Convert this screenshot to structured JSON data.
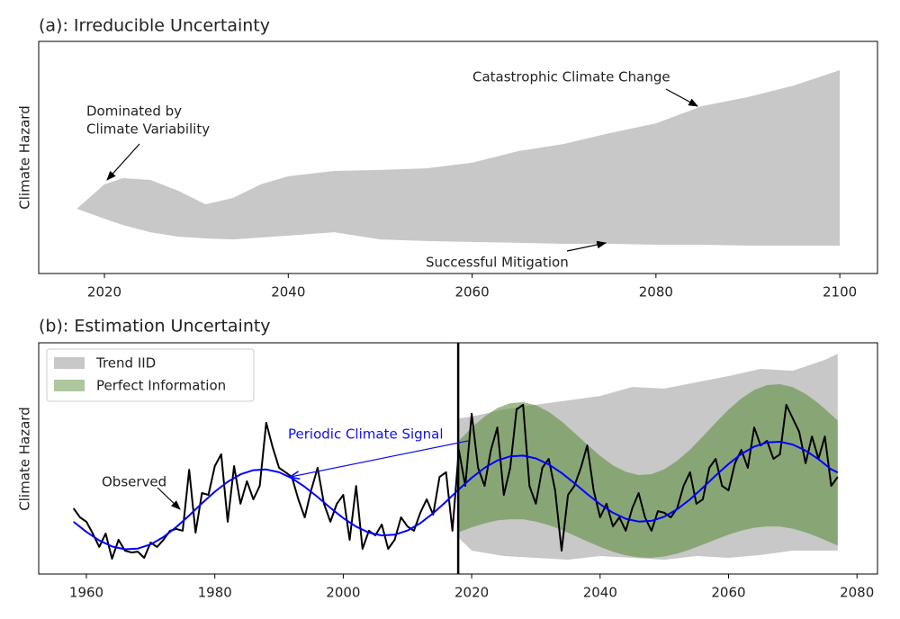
{
  "chart_data": [
    {
      "type": "band",
      "title": "(a): Irreducible Uncertainty",
      "ylabel": "Climate Hazard",
      "x": [
        2017,
        2020,
        2022,
        2025,
        2028,
        2031,
        2034,
        2037,
        2040,
        2045,
        2050,
        2055,
        2060,
        2065,
        2070,
        2075,
        2080,
        2085,
        2090,
        2095,
        2100
      ],
      "upper": [
        27.9,
        38.4,
        41.1,
        40.3,
        35.7,
        29.8,
        32.6,
        38.4,
        41.9,
        44.2,
        44.6,
        45.3,
        47.7,
        52.7,
        55.8,
        60.5,
        64.7,
        72.1,
        76.0,
        81.0,
        87.6
      ],
      "lower": [
        27.9,
        23.6,
        20.9,
        17.8,
        15.9,
        15.1,
        14.7,
        15.5,
        16.3,
        17.8,
        14.7,
        14.0,
        13.6,
        13.2,
        12.8,
        12.8,
        12.4,
        12.4,
        12.0,
        12.0,
        12.0
      ],
      "color": "#c8c8c8",
      "xlim": [
        2012.85,
        2104.1
      ],
      "xticks": [
        2020,
        2040,
        2060,
        2080,
        2100
      ],
      "ylim": [
        0,
        100
      ],
      "annotations": [
        {
          "text": "Catastrophic Climate Change"
        },
        {
          "text": [
            "Dominated by",
            "Climate Variability"
          ]
        },
        {
          "text": "Successful Mitigation"
        }
      ]
    },
    {
      "type": "line",
      "title": "(b): Estimation Uncertainty",
      "ylabel": "Climate Hazard",
      "xlim": [
        1952.57,
        2083.2
      ],
      "xticks": [
        1960,
        1980,
        2000,
        2020,
        2040,
        2060,
        2080
      ],
      "ylim": [
        0,
        100
      ],
      "legend": "upper left",
      "vline": 2017.9,
      "bands": [
        {
          "name": "Trend IID",
          "color": "#c8c8c8",
          "x": [
            2018,
            2020,
            2025,
            2030,
            2035,
            2040,
            2045,
            2050,
            2055,
            2060,
            2065,
            2070,
            2075,
            2077
          ],
          "upper": [
            67.3,
            68.1,
            71.2,
            73.2,
            75.1,
            77.0,
            80.9,
            80.2,
            82.9,
            85.6,
            88.7,
            87.9,
            92.6,
            95.3
          ],
          "lower": [
            15.6,
            10.1,
            7.8,
            7.0,
            6.2,
            7.8,
            7.0,
            6.2,
            7.8,
            7.0,
            8.2,
            10.1,
            10.1,
            10.1
          ]
        },
        {
          "name": "Perfect Information",
          "color": "#5e8f3e",
          "x": [
            2018,
            2020,
            2022,
            2024,
            2026,
            2028,
            2030,
            2032,
            2034,
            2036,
            2038,
            2040,
            2042,
            2044,
            2046,
            2048,
            2050,
            2052,
            2054,
            2056,
            2058,
            2060,
            2062,
            2064,
            2066,
            2068,
            2070,
            2072,
            2074,
            2076,
            2077
          ],
          "upper": [
            57.6,
            63.3,
            68.1,
            71.8,
            73.9,
            74.3,
            73.0,
            70.1,
            66.0,
            61.1,
            56.0,
            51.1,
            47.0,
            44.2,
            42.8,
            43.2,
            45.3,
            49.0,
            53.8,
            59.5,
            65.4,
            71.1,
            75.9,
            79.6,
            81.7,
            82.1,
            80.8,
            77.9,
            73.8,
            68.9,
            66.4
          ],
          "lower": [
            18.1,
            20.2,
            21.9,
            23.2,
            23.7,
            23.6,
            22.7,
            21.1,
            19.1,
            16.6,
            14.1,
            11.7,
            9.6,
            8.1,
            7.2,
            7.0,
            7.6,
            8.8,
            10.6,
            12.7,
            14.9,
            17.0,
            18.8,
            20.0,
            20.6,
            20.5,
            19.6,
            18.0,
            15.9,
            13.5,
            12.3
          ]
        }
      ],
      "series": [
        {
          "color": "#000000",
          "x": [
            1958,
            1959,
            1960,
            1961,
            1962,
            1963,
            1964,
            1965,
            1966,
            1967,
            1968,
            1969,
            1970,
            1971,
            1972,
            1973,
            1974,
            1975,
            1976,
            1977,
            1978,
            1979,
            1980,
            1981,
            1982,
            1983,
            1984,
            1985,
            1986,
            1987,
            1988,
            1989,
            1990,
            1991,
            1992,
            1993,
            1994,
            1995,
            1996,
            1997,
            1998,
            1999,
            2000,
            2001,
            2002,
            2003,
            2004,
            2005,
            2006,
            2007,
            2008,
            2009,
            2010,
            2011,
            2012,
            2013,
            2014,
            2015,
            2016,
            2017,
            2018,
            2019,
            2020,
            2021,
            2022,
            2023,
            2024,
            2025,
            2026,
            2027,
            2028,
            2029,
            2030,
            2031,
            2032,
            2033,
            2034,
            2035,
            2036,
            2037,
            2038,
            2039,
            2040,
            2041,
            2042,
            2043,
            2044,
            2045,
            2046,
            2047,
            2048,
            2049,
            2050,
            2051,
            2052,
            2053,
            2054,
            2055,
            2056,
            2057,
            2058,
            2059,
            2060,
            2061,
            2062,
            2063,
            2064,
            2065,
            2066,
            2067,
            2068,
            2069,
            2070,
            2071,
            2072,
            2073,
            2074,
            2075,
            2076,
            2077
          ],
          "values": [
            28.4,
            24.5,
            22.6,
            17.5,
            11.7,
            17.5,
            6.6,
            14.8,
            10.1,
            9.3,
            9.7,
            7.0,
            13.6,
            11.7,
            14.8,
            18.7,
            19.5,
            18.7,
            45.1,
            17.9,
            35.0,
            34.2,
            46.7,
            51.8,
            22.6,
            46.7,
            30.4,
            40.1,
            32.3,
            38.1,
            65.4,
            54.9,
            45.9,
            44.0,
            42.0,
            32.3,
            24.5,
            36.2,
            45.9,
            30.4,
            22.6,
            30.4,
            34.2,
            14.8,
            38.1,
            10.9,
            18.7,
            16.7,
            21.4,
            10.9,
            14.8,
            24.5,
            20.6,
            18.7,
            26.5,
            32.3,
            25.7,
            42.0,
            44.0,
            18.7,
            53.7,
            38.1,
            69.3,
            45.9,
            38.1,
            53.7,
            63.4,
            34.2,
            45.9,
            71.2,
            73.2,
            38.1,
            30.4,
            45.9,
            49.8,
            36.2,
            10.1,
            34.2,
            38.1,
            45.9,
            55.6,
            36.2,
            24.5,
            30.4,
            20.6,
            24.5,
            18.7,
            28.4,
            35.0,
            24.5,
            18.7,
            27.2,
            26.5,
            24.5,
            28.4,
            38.1,
            44.0,
            30.4,
            32.3,
            45.9,
            49.8,
            38.1,
            36.2,
            47.9,
            53.7,
            45.9,
            63.4,
            55.6,
            57.6,
            49.8,
            51.8,
            73.2,
            67.3,
            61.5,
            47.9,
            59.5,
            49.8,
            59.5,
            38.1,
            42.0
          ]
        },
        {
          "color": "#0000ff",
          "x": [
            1958,
            1960,
            1962,
            1964,
            1966,
            1968,
            1970,
            1972,
            1974,
            1976,
            1978,
            1980,
            1982,
            1984,
            1986,
            1988,
            1990,
            1992,
            1994,
            1996,
            1998,
            2000,
            2002,
            2004,
            2006,
            2008,
            2010,
            2012,
            2014,
            2016,
            2018,
            2020,
            2022,
            2024,
            2026,
            2028,
            2030,
            2032,
            2034,
            2036,
            2038,
            2040,
            2042,
            2044,
            2046,
            2048,
            2050,
            2052,
            2054,
            2056,
            2058,
            2060,
            2062,
            2064,
            2066,
            2068,
            2070,
            2072,
            2074,
            2076,
            2077
          ],
          "values": [
            22.6,
            18.2,
            14.5,
            11.9,
            10.7,
            11.0,
            12.8,
            16.0,
            20.3,
            25.3,
            30.6,
            35.6,
            39.9,
            43.1,
            44.9,
            45.2,
            44.0,
            41.4,
            37.7,
            33.3,
            28.6,
            24.2,
            20.5,
            17.9,
            16.7,
            17.0,
            18.8,
            22.0,
            26.3,
            31.3,
            36.6,
            41.6,
            45.9,
            49.1,
            50.9,
            51.2,
            50.0,
            47.4,
            43.7,
            39.3,
            34.6,
            30.2,
            26.5,
            23.9,
            22.7,
            23.0,
            24.8,
            28.0,
            32.3,
            37.3,
            42.6,
            47.6,
            51.9,
            55.1,
            56.9,
            57.2,
            56.0,
            53.4,
            49.7,
            45.3,
            43.9
          ]
        }
      ],
      "annotations": [
        {
          "text": "Periodic Climate Signal"
        },
        {
          "text": "Observed"
        }
      ]
    }
  ]
}
